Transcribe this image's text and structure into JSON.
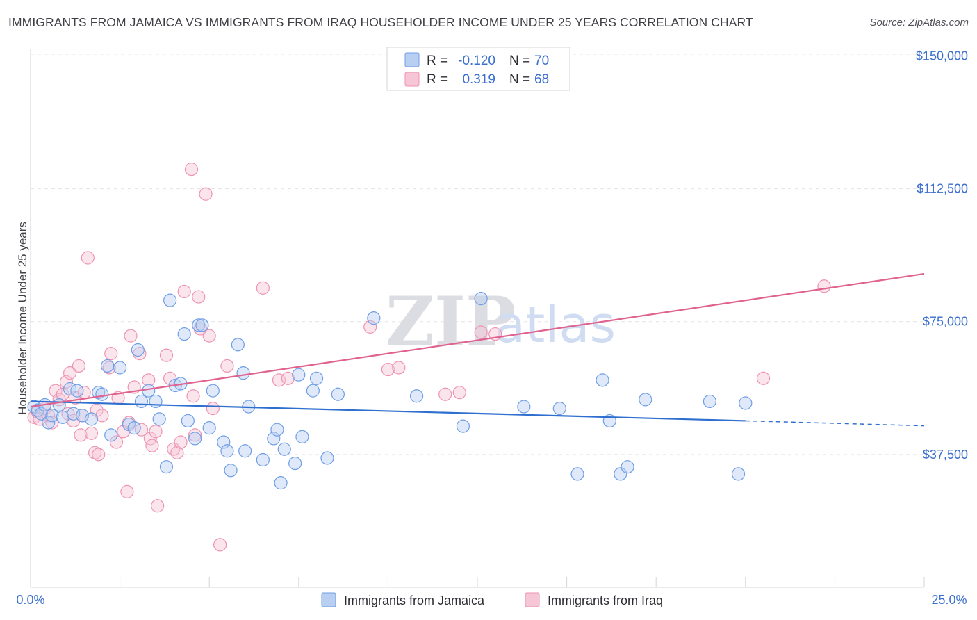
{
  "header": {
    "title": "IMMIGRANTS FROM JAMAICA VS IMMIGRANTS FROM IRAQ HOUSEHOLDER INCOME UNDER 25 YEARS CORRELATION CHART",
    "source": "Source: ZipAtlas.com"
  },
  "colors": {
    "jamaica": "#6f9ee6",
    "jamaica_fill": "#b8cff2",
    "jamaica_line": "#2f6fd0",
    "iraq": "#ee93b1",
    "iraq_fill": "#f6c6d6",
    "iraq_line": "#e0628f",
    "tick_label": "#3a6fcf"
  },
  "legend": {
    "rows": [
      {
        "r_label": "R =",
        "r_value": "-0.120",
        "n_label": "N =",
        "n_value": "70"
      },
      {
        "r_label": "R =",
        "r_value": "0.319",
        "n_label": "N =",
        "n_value": "68"
      }
    ]
  },
  "watermark": {
    "zip": "ZIP",
    "atlas": "atlas"
  },
  "chart_data": {
    "type": "scatter",
    "title": "IMMIGRANTS FROM JAMAICA VS IMMIGRANTS FROM IRAQ HOUSEHOLDER INCOME UNDER 25 YEARS CORRELATION CHART",
    "xlabel": "",
    "ylabel": "Householder Income Under 25 years",
    "xlim": [
      0,
      25
    ],
    "ylim": [
      0,
      155000
    ],
    "x_tick_labels": [
      "0.0%",
      "25.0%"
    ],
    "y_ticks": [
      37500,
      75000,
      112500,
      150000
    ],
    "y_tick_labels": [
      "$37,500",
      "$75,000",
      "$112,500",
      "$150,000"
    ],
    "legend_position": "top-center",
    "grid": true,
    "series": [
      {
        "name": "Immigrants from Jamaica",
        "color": "#6f9ee6",
        "r": -0.12,
        "n": 70,
        "trend": {
          "x0": 0,
          "y0": 52500,
          "x1": 20,
          "y1": 47000,
          "dash_x1": 25,
          "dash_y1": 45600
        },
        "points": [
          [
            0.1,
            51000
          ],
          [
            0.2,
            50000
          ],
          [
            0.3,
            49000
          ],
          [
            0.4,
            51500
          ],
          [
            0.5,
            46500
          ],
          [
            0.6,
            48500
          ],
          [
            0.8,
            51500
          ],
          [
            0.9,
            48000
          ],
          [
            1.1,
            56000
          ],
          [
            1.2,
            49000
          ],
          [
            1.3,
            55500
          ],
          [
            1.45,
            48500
          ],
          [
            1.7,
            47500
          ],
          [
            1.9,
            55000
          ],
          [
            2.0,
            54500
          ],
          [
            2.15,
            62500
          ],
          [
            2.25,
            43000
          ],
          [
            2.5,
            62000
          ],
          [
            2.75,
            46000
          ],
          [
            2.9,
            45000
          ],
          [
            3.0,
            67000
          ],
          [
            3.1,
            52500
          ],
          [
            3.3,
            55500
          ],
          [
            3.5,
            52500
          ],
          [
            3.6,
            47500
          ],
          [
            3.8,
            34000
          ],
          [
            3.9,
            81000
          ],
          [
            4.05,
            57000
          ],
          [
            4.2,
            57500
          ],
          [
            4.3,
            71500
          ],
          [
            4.4,
            47000
          ],
          [
            4.6,
            42000
          ],
          [
            4.7,
            74000
          ],
          [
            4.8,
            74000
          ],
          [
            5.0,
            45000
          ],
          [
            5.1,
            55500
          ],
          [
            5.4,
            41000
          ],
          [
            5.5,
            38500
          ],
          [
            5.6,
            33000
          ],
          [
            5.8,
            68500
          ],
          [
            5.95,
            60500
          ],
          [
            6.0,
            38500
          ],
          [
            6.1,
            51000
          ],
          [
            6.5,
            36000
          ],
          [
            6.8,
            42000
          ],
          [
            6.9,
            44500
          ],
          [
            7.0,
            29500
          ],
          [
            7.1,
            39000
          ],
          [
            7.5,
            60000
          ],
          [
            7.4,
            35000
          ],
          [
            7.6,
            42500
          ],
          [
            7.9,
            55500
          ],
          [
            8.0,
            59000
          ],
          [
            8.3,
            36500
          ],
          [
            8.6,
            54500
          ],
          [
            9.6,
            76000
          ],
          [
            10.8,
            54000
          ],
          [
            12.1,
            45500
          ],
          [
            12.6,
            81500
          ],
          [
            13.8,
            51000
          ],
          [
            14.8,
            50500
          ],
          [
            15.3,
            32000
          ],
          [
            16.0,
            58500
          ],
          [
            16.2,
            47000
          ],
          [
            16.5,
            32000
          ],
          [
            16.7,
            34000
          ],
          [
            17.2,
            53000
          ],
          [
            19.0,
            52500
          ],
          [
            19.8,
            32000
          ],
          [
            20.0,
            52000
          ]
        ]
      },
      {
        "name": "Immigrants from Iraq",
        "color": "#ee93b1",
        "r": 0.319,
        "n": 68,
        "trend": {
          "x0": 0,
          "y0": 51000,
          "x1": 25,
          "y1": 88500
        },
        "points": [
          [
            0.1,
            48000
          ],
          [
            0.2,
            49500
          ],
          [
            0.25,
            47500
          ],
          [
            0.4,
            50500
          ],
          [
            0.5,
            48500
          ],
          [
            0.6,
            46500
          ],
          [
            0.7,
            55500
          ],
          [
            0.8,
            53000
          ],
          [
            0.9,
            54500
          ],
          [
            1.0,
            58000
          ],
          [
            1.05,
            49000
          ],
          [
            1.1,
            60500
          ],
          [
            1.2,
            47000
          ],
          [
            1.25,
            53500
          ],
          [
            1.35,
            62500
          ],
          [
            1.4,
            43000
          ],
          [
            1.45,
            48500
          ],
          [
            1.5,
            55000
          ],
          [
            1.6,
            93000
          ],
          [
            1.7,
            43500
          ],
          [
            1.8,
            38000
          ],
          [
            1.85,
            50000
          ],
          [
            1.9,
            37500
          ],
          [
            2.0,
            48500
          ],
          [
            2.2,
            62000
          ],
          [
            2.25,
            66000
          ],
          [
            2.4,
            41000
          ],
          [
            2.45,
            53500
          ],
          [
            2.6,
            44000
          ],
          [
            2.7,
            27000
          ],
          [
            2.75,
            46500
          ],
          [
            2.8,
            71000
          ],
          [
            2.9,
            56500
          ],
          [
            3.05,
            66000
          ],
          [
            3.1,
            44500
          ],
          [
            3.3,
            58500
          ],
          [
            3.35,
            42000
          ],
          [
            3.4,
            40000
          ],
          [
            3.5,
            44000
          ],
          [
            3.55,
            23000
          ],
          [
            3.8,
            65500
          ],
          [
            3.9,
            59000
          ],
          [
            4.0,
            39000
          ],
          [
            4.1,
            38000
          ],
          [
            4.2,
            41000
          ],
          [
            4.3,
            83500
          ],
          [
            4.5,
            118000
          ],
          [
            4.55,
            54000
          ],
          [
            4.6,
            43000
          ],
          [
            4.7,
            82000
          ],
          [
            4.75,
            73000
          ],
          [
            4.9,
            111000
          ],
          [
            5.0,
            71000
          ],
          [
            5.1,
            50500
          ],
          [
            5.3,
            12000
          ],
          [
            5.5,
            62500
          ],
          [
            6.5,
            84500
          ],
          [
            6.95,
            58500
          ],
          [
            7.2,
            59000
          ],
          [
            9.5,
            73500
          ],
          [
            10.0,
            61500
          ],
          [
            10.3,
            62000
          ],
          [
            11.6,
            54500
          ],
          [
            12.0,
            55000
          ],
          [
            12.6,
            72000
          ],
          [
            13.0,
            71500
          ],
          [
            20.5,
            59000
          ],
          [
            22.2,
            85000
          ]
        ]
      }
    ]
  },
  "bottom_legend": [
    {
      "label": "Immigrants from Jamaica"
    },
    {
      "label": "Immigrants from Iraq"
    }
  ]
}
